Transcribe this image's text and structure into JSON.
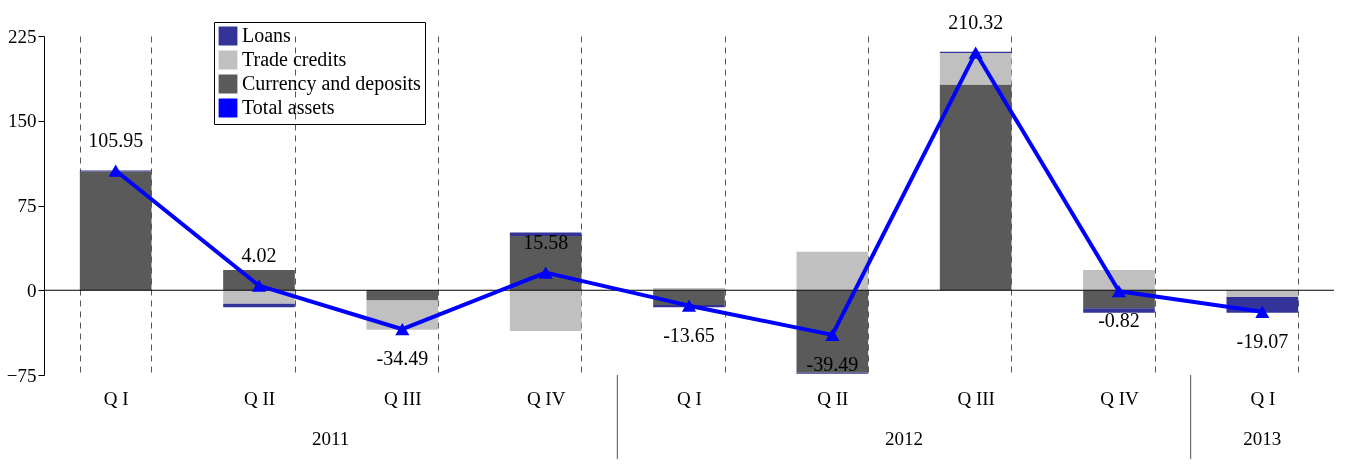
{
  "chart_data": {
    "type": "bar",
    "stacked": true,
    "categories": [
      "Q I",
      "Q II",
      "Q III",
      "Q IV",
      "Q I",
      "Q II",
      "Q III",
      "Q IV",
      "Q I"
    ],
    "series": [
      {
        "name": "Currency and deposits",
        "color": "#5a5a5a",
        "values": [
          105,
          18,
          -9,
          48,
          -13,
          -73,
          182,
          -16,
          0
        ]
      },
      {
        "name": "Trade credits",
        "color": "#c0c0c0",
        "values": [
          0,
          -12,
          -26,
          -36,
          2,
          34,
          28,
          18,
          -6
        ]
      },
      {
        "name": "Loans",
        "color": "#333399",
        "values": [
          1,
          -3,
          0,
          3,
          -2,
          -1,
          1,
          -4,
          -14
        ]
      },
      {
        "name": "Total assets",
        "type": "line",
        "color": "#0000ff",
        "marker": "triangle",
        "values": [
          105.95,
          4.02,
          -34.49,
          15.58,
          -13.65,
          -39.49,
          210.32,
          -0.82,
          -19.07
        ],
        "value_labels": [
          "105.95",
          "4.02",
          "-34.49",
          "15.58",
          "-13.65",
          "-39.49",
          "210.32",
          "-0.82",
          "-19.07"
        ]
      }
    ],
    "ylim": [
      -75,
      225
    ],
    "yticks": [
      -75,
      0,
      75,
      150,
      225
    ],
    "grid": "x",
    "legend": "top left",
    "ref_lines": [
      {
        "axis": "y",
        "value": 0
      }
    ],
    "annotations": [
      "2011",
      "2012",
      "2013"
    ]
  }
}
